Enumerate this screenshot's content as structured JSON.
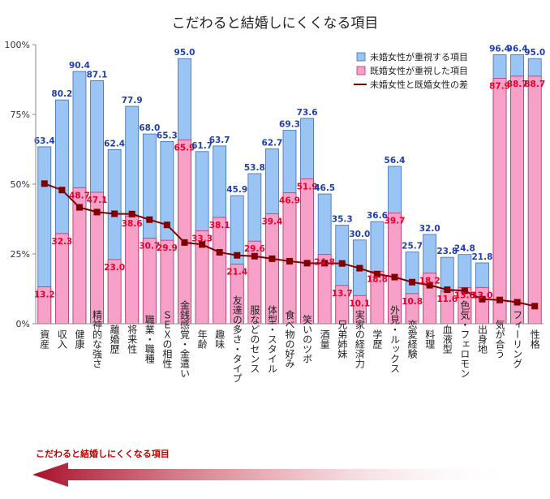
{
  "chart_data": {
    "type": "bar",
    "title": "こだわると結婚しにくくなる項目",
    "footer_label": "こだわると結婚しにくくなる項目",
    "ylim": [
      0,
      100
    ],
    "yticks": [
      "0%",
      "25%",
      "50%",
      "75%",
      "100%"
    ],
    "categories": [
      "資産",
      "収入",
      "健康",
      "精神的な強さ",
      "離婚歴",
      "将来性",
      "職業・職種",
      "ＳＥＸの相性",
      "金銭感覚・金遣い",
      "年齢",
      "趣味",
      "友達の多さ・タイプ",
      "服などのセンス",
      "体型・スタイル",
      "食べ物の好み",
      "笑いのツボ",
      "酒量",
      "兄弟姉妹",
      "実家の経済力",
      "学歴",
      "外見・ルックス",
      "恋愛経験",
      "料理",
      "血液型",
      "色気・フェロモン",
      "出身地",
      "気が合う",
      "フィーリング",
      "性格"
    ],
    "series": [
      {
        "name": "未婚女性が重視する項目",
        "color": "#99c4f4",
        "values": [
          63.4,
          80.2,
          90.4,
          87.1,
          62.4,
          77.9,
          68.0,
          65.3,
          95.0,
          61.7,
          63.7,
          45.9,
          53.8,
          62.7,
          69.3,
          73.6,
          46.5,
          35.3,
          30.0,
          36.6,
          56.4,
          25.7,
          32.0,
          23.8,
          24.8,
          21.8,
          96.4,
          96.4,
          95.0
        ]
      },
      {
        "name": "既婚女性が重視した項目",
        "color": "#f7a0c8",
        "values": [
          13.2,
          32.3,
          48.7,
          47.1,
          23.0,
          38.6,
          30.7,
          29.9,
          65.9,
          33.3,
          38.1,
          21.4,
          29.6,
          39.4,
          46.9,
          51.9,
          24.8,
          13.7,
          10.1,
          18.8,
          39.7,
          10.8,
          18.2,
          11.6,
          13.0,
          13.0,
          87.9,
          88.7,
          88.7
        ]
      },
      {
        "name": "未婚女性と既婚女性の差",
        "color": "#800000",
        "values": [
          50.2,
          47.9,
          41.7,
          40.0,
          39.4,
          39.3,
          37.3,
          35.4,
          29.1,
          28.4,
          25.6,
          24.5,
          24.2,
          23.3,
          22.4,
          21.7,
          21.7,
          21.6,
          19.9,
          17.8,
          16.7,
          14.9,
          13.8,
          12.2,
          11.8,
          8.8,
          8.5,
          7.7,
          6.3
        ]
      }
    ],
    "legend": "top-right",
    "grid": false
  }
}
